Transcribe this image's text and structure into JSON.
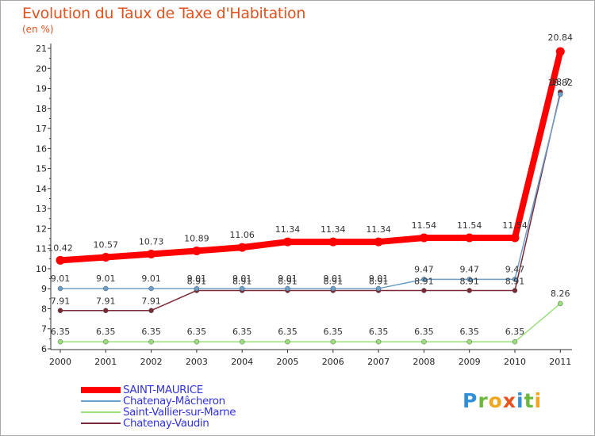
{
  "title": "Evolution du Taux de Taxe d'Habitation",
  "unit_label": "(en %)",
  "logo": {
    "letters": [
      {
        "char": "P",
        "color": "#2f8fd8"
      },
      {
        "char": "r",
        "color": "#6bb83a"
      },
      {
        "char": "o",
        "color": "#f2a51f"
      },
      {
        "char": "x",
        "color": "#e8511a"
      },
      {
        "char": "i",
        "color": "#2f8fd8"
      },
      {
        "char": "t",
        "color": "#6bb83a"
      },
      {
        "char": "i",
        "color": "#f2a51f"
      }
    ]
  },
  "chart_data": {
    "type": "line",
    "x": [
      "2000",
      "2001",
      "2002",
      "2003",
      "2004",
      "2005",
      "2006",
      "2007",
      "2008",
      "2009",
      "2010",
      "2011"
    ],
    "ylim": [
      6,
      21
    ],
    "yticks": [
      6,
      7,
      8,
      9,
      10,
      11,
      12,
      13,
      14,
      15,
      16,
      17,
      18,
      19,
      20,
      21
    ],
    "grid": false,
    "legend_position": "bottom-left",
    "series": [
      {
        "name": "SAINT-MAURICE",
        "color": "#ff0000",
        "values": [
          10.42,
          10.57,
          10.73,
          10.89,
          11.06,
          11.34,
          11.34,
          11.34,
          11.54,
          11.54,
          11.54,
          20.84
        ],
        "labels": [
          "10.42",
          "10.57",
          "10.73",
          "10.89",
          "11.06",
          "11.34",
          "11.34",
          "11.34",
          "11.54",
          "11.54",
          "11.54",
          "20.84"
        ]
      },
      {
        "name": "Chatenay-Mâcheron",
        "color": "#6b9ec9",
        "values": [
          9.01,
          9.01,
          9.01,
          9.01,
          9.01,
          9.01,
          9.01,
          9.01,
          9.47,
          9.47,
          9.47,
          18.7
        ],
        "labels": [
          "9.01",
          "9.01",
          "9.01",
          "9.01",
          "9.01",
          "9.01",
          "9.01",
          "9.01",
          "9.47",
          "9.47",
          "9.47",
          "18.7"
        ]
      },
      {
        "name": "Saint-Vallier-sur-Marne",
        "color": "#99e07a",
        "values": [
          6.35,
          6.35,
          6.35,
          6.35,
          6.35,
          6.35,
          6.35,
          6.35,
          6.35,
          6.35,
          6.35,
          8.26
        ],
        "labels": [
          "6.35",
          "6.35",
          "6.35",
          "6.35",
          "6.35",
          "6.35",
          "6.35",
          "6.35",
          "6.35",
          "6.35",
          "6.35",
          "8.26"
        ]
      },
      {
        "name": "Chatenay-Vaudin",
        "color": "#7a2a36",
        "values": [
          7.91,
          7.91,
          7.91,
          8.91,
          8.91,
          8.91,
          8.91,
          8.91,
          8.91,
          8.91,
          8.91,
          18.82
        ],
        "labels": [
          "7.91",
          "7.91",
          "7.91",
          "8.91",
          "8.91",
          "8.91",
          "8.91",
          "8.91",
          "8.91",
          "8.91",
          "8.91",
          "18.82"
        ]
      }
    ]
  }
}
